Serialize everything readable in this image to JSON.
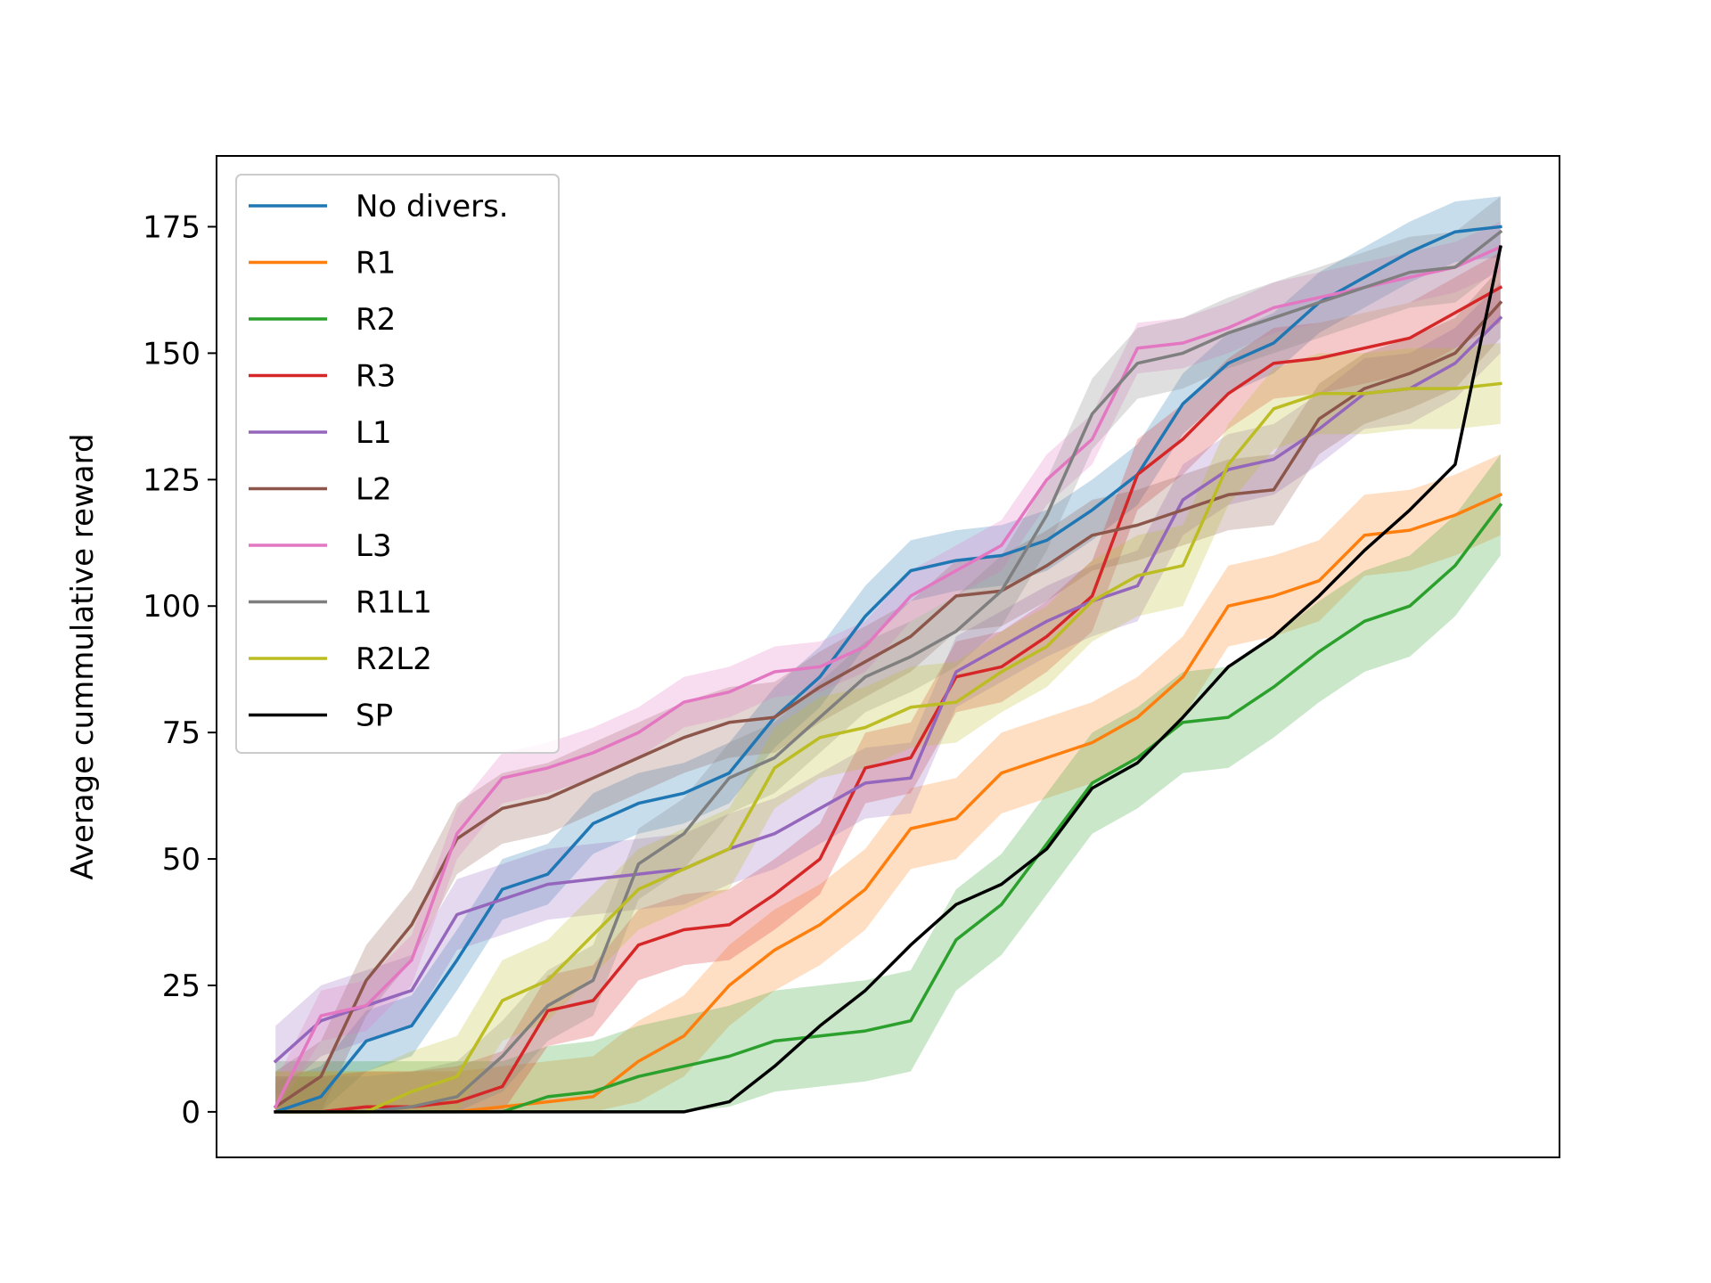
{
  "chart_data": {
    "type": "line",
    "title": "",
    "xlabel": "",
    "ylabel": "Average cummulative reward",
    "xlim": [
      -1.3,
      28.3
    ],
    "ylim": [
      -9,
      189
    ],
    "x": [
      0,
      1,
      2,
      3,
      4,
      5,
      6,
      7,
      8,
      9,
      10,
      11,
      12,
      13,
      14,
      15,
      16,
      17,
      18,
      19,
      20,
      21,
      22,
      23,
      24,
      25,
      26,
      27
    ],
    "y_ticks": [
      0,
      25,
      50,
      75,
      100,
      125,
      150,
      175
    ],
    "x_ticks": [],
    "grid": false,
    "legend_position": "upper-left",
    "series": [
      {
        "name": "No divers.",
        "color": "#1f77b4",
        "values": [
          0,
          3,
          14,
          17,
          30,
          44,
          47,
          57,
          61,
          63,
          67,
          78,
          86,
          98,
          107,
          109,
          110,
          113,
          119,
          126,
          140,
          148,
          152,
          160,
          165,
          170,
          174,
          175
        ],
        "band": 6
      },
      {
        "name": "R1",
        "color": "#ff7f0e",
        "values": [
          0,
          0,
          0,
          0,
          0,
          1,
          2,
          3,
          10,
          15,
          25,
          32,
          37,
          44,
          56,
          58,
          67,
          70,
          73,
          78,
          86,
          100,
          102,
          105,
          114,
          115,
          118,
          122
        ],
        "band": 8
      },
      {
        "name": "R2",
        "color": "#2ca02c",
        "values": [
          0,
          0,
          0,
          0,
          0,
          0,
          3,
          4,
          7,
          9,
          11,
          14,
          15,
          16,
          18,
          34,
          41,
          53,
          65,
          70,
          77,
          78,
          84,
          91,
          97,
          100,
          108,
          120
        ],
        "band": 10
      },
      {
        "name": "R3",
        "color": "#d62728",
        "values": [
          0,
          0,
          1,
          1,
          2,
          5,
          20,
          22,
          33,
          36,
          37,
          43,
          50,
          68,
          70,
          86,
          88,
          94,
          102,
          126,
          133,
          142,
          148,
          149,
          151,
          153,
          158,
          163
        ],
        "band": 7
      },
      {
        "name": "L1",
        "color": "#9467bd",
        "values": [
          10,
          18,
          21,
          24,
          39,
          42,
          45,
          46,
          47,
          48,
          52,
          55,
          60,
          65,
          66,
          87,
          92,
          97,
          101,
          104,
          121,
          127,
          129,
          135,
          142,
          143,
          148,
          157
        ],
        "band": 7
      },
      {
        "name": "L2",
        "color": "#8c564b",
        "values": [
          1,
          7,
          26,
          37,
          54,
          60,
          62,
          66,
          70,
          74,
          77,
          78,
          84,
          89,
          94,
          102,
          103,
          108,
          114,
          116,
          119,
          122,
          123,
          137,
          143,
          146,
          150,
          160
        ],
        "band": 7
      },
      {
        "name": "L3",
        "color": "#e377c2",
        "values": [
          1,
          19,
          21,
          30,
          55,
          66,
          68,
          71,
          75,
          81,
          83,
          87,
          88,
          92,
          102,
          107,
          112,
          125,
          133,
          151,
          152,
          155,
          159,
          161,
          163,
          165,
          167,
          171
        ],
        "band": 5
      },
      {
        "name": "R1L1",
        "color": "#7f7f7f",
        "values": [
          0,
          0,
          0,
          1,
          3,
          11,
          21,
          26,
          49,
          55,
          66,
          70,
          78,
          86,
          90,
          95,
          103,
          118,
          138,
          148,
          150,
          154,
          157,
          160,
          163,
          166,
          167,
          174
        ],
        "band": 7
      },
      {
        "name": "R2L2",
        "color": "#bcbd22",
        "values": [
          0,
          0,
          0,
          4,
          7,
          22,
          26,
          35,
          44,
          48,
          52,
          68,
          74,
          76,
          80,
          81,
          87,
          92,
          101,
          106,
          108,
          128,
          139,
          142,
          142,
          143,
          143,
          144
        ],
        "band": 8
      },
      {
        "name": "SP",
        "color": "#000000",
        "values": [
          0,
          0,
          0,
          0,
          0,
          0,
          0,
          0,
          0,
          0,
          2,
          9,
          17,
          24,
          33,
          41,
          45,
          52,
          64,
          69,
          78,
          88,
          94,
          102,
          111,
          119,
          128,
          171
        ],
        "band": 0
      }
    ]
  }
}
